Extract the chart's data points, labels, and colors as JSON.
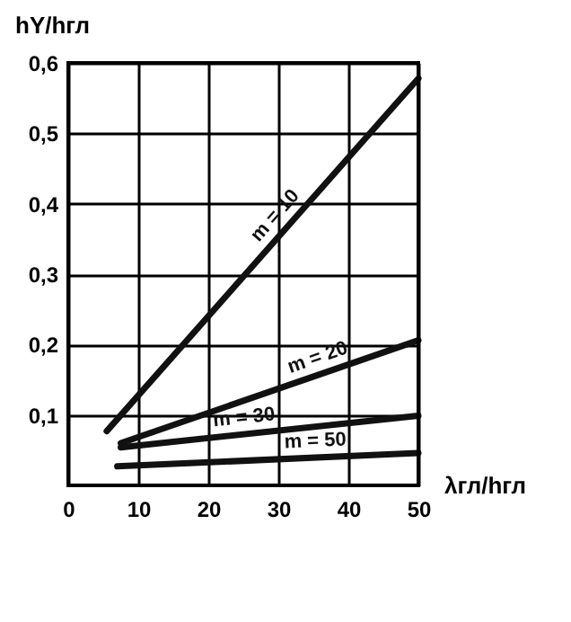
{
  "chart_data": {
    "type": "line",
    "xlabel": "λгл/hгл",
    "ylabel": "hY/hгл",
    "xlim": [
      0,
      50
    ],
    "xticks": [
      0,
      10,
      20,
      30,
      40,
      50
    ],
    "ylim": [
      0,
      0.6
    ],
    "yticks": [
      {
        "value": 0.1,
        "label": "0,1"
      },
      {
        "value": 0.2,
        "label": "0,2"
      },
      {
        "value": 0.3,
        "label": "0,3"
      },
      {
        "value": 0.4,
        "label": "0,4"
      },
      {
        "value": 0.5,
        "label": "0,5"
      },
      {
        "value": 0.6,
        "label": "0,6"
      }
    ],
    "grid": true,
    "marker": "none",
    "line_style": "solid",
    "series": [
      {
        "name": "m = 10",
        "color": "#111111",
        "x": [
          5.5,
          50
        ],
        "values": [
          0.077,
          0.578
        ]
      },
      {
        "name": "m = 20",
        "color": "#111111",
        "x": [
          7.5,
          50
        ],
        "values": [
          0.06,
          0.206
        ]
      },
      {
        "name": "m = 30",
        "color": "#111111",
        "x": [
          7.5,
          50
        ],
        "values": [
          0.054,
          0.099
        ]
      },
      {
        "name": "m = 50",
        "color": "#111111",
        "x": [
          7,
          50
        ],
        "values": [
          0.027,
          0.046
        ]
      }
    ]
  }
}
